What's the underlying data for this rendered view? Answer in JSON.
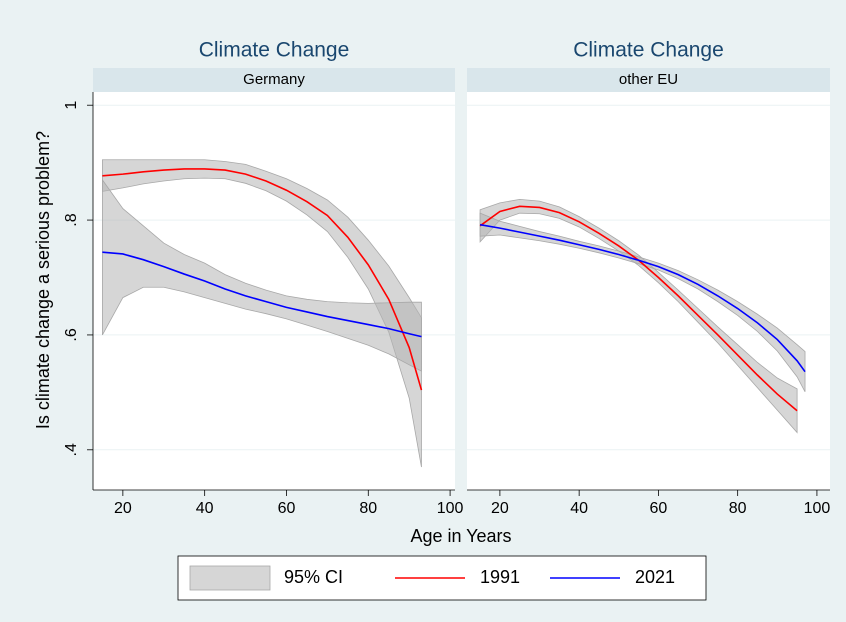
{
  "chart_data": {
    "type": "line",
    "ylabel": "Is climate change a serious problem?",
    "xlabel": "Age in Years",
    "ylim": [
      0.33,
      1.023
    ],
    "yticks": [
      {
        "value": 0.4,
        "label": ".4"
      },
      {
        "value": 0.6,
        "label": ".6"
      },
      {
        "value": 0.8,
        "label": ".8"
      },
      1
    ],
    "grid": true,
    "ci": {
      "label": "95% CI",
      "color": "#b4b4b4"
    },
    "series": [
      {
        "name": "1991",
        "color": "#ff0000"
      },
      {
        "name": "2021",
        "color": "#0000ff"
      }
    ],
    "panels": [
      {
        "title": "Climate Change",
        "subtitle": "Germany",
        "xlim": [
          12.7,
          101.2
        ],
        "xticks": [
          20,
          40,
          60,
          80,
          100
        ],
        "lines": [
          {
            "x": [
              15,
              20,
              25,
              30,
              35,
              40,
              45,
              50,
              55,
              60,
              65,
              70,
              75,
              80,
              85,
              90,
              93
            ],
            "values": [
              0.877,
              0.88,
              0.884,
              0.887,
              0.889,
              0.889,
              0.887,
              0.88,
              0.868,
              0.852,
              0.832,
              0.808,
              0.77,
              0.722,
              0.662,
              0.578,
              0.504
            ],
            "upper": [
              0.905,
              0.905,
              0.905,
              0.905,
              0.905,
              0.905,
              0.902,
              0.897,
              0.885,
              0.872,
              0.855,
              0.835,
              0.805,
              0.765,
              0.72,
              0.665,
              0.63
            ],
            "lower": [
              0.85,
              0.856,
              0.863,
              0.868,
              0.872,
              0.873,
              0.872,
              0.864,
              0.851,
              0.833,
              0.809,
              0.78,
              0.735,
              0.68,
              0.605,
              0.49,
              0.37
            ]
          },
          {
            "x": [
              15,
              20,
              25,
              30,
              35,
              40,
              45,
              50,
              55,
              60,
              65,
              70,
              75,
              80,
              85,
              90,
              93
            ],
            "values": [
              0.744,
              0.741,
              0.731,
              0.719,
              0.706,
              0.694,
              0.68,
              0.668,
              0.658,
              0.648,
              0.64,
              0.632,
              0.625,
              0.618,
              0.611,
              0.602,
              0.597
            ],
            "upper": [
              0.87,
              0.82,
              0.79,
              0.76,
              0.74,
              0.725,
              0.705,
              0.69,
              0.678,
              0.668,
              0.662,
              0.658,
              0.656,
              0.655,
              0.656,
              0.657,
              0.657
            ],
            "lower": [
              0.6,
              0.665,
              0.683,
              0.683,
              0.675,
              0.665,
              0.655,
              0.645,
              0.637,
              0.628,
              0.617,
              0.606,
              0.594,
              0.582,
              0.567,
              0.548,
              0.537
            ]
          }
        ]
      },
      {
        "title": "Climate Change",
        "subtitle": "other EU",
        "xlim": [
          11.7,
          103.3
        ],
        "xticks": [
          20,
          40,
          60,
          80,
          100
        ],
        "lines": [
          {
            "x": [
              15,
              20,
              25,
              30,
              35,
              40,
              45,
              50,
              55,
              60,
              65,
              70,
              75,
              80,
              85,
              90,
              95
            ],
            "values": [
              0.79,
              0.815,
              0.824,
              0.822,
              0.813,
              0.797,
              0.777,
              0.755,
              0.73,
              0.7,
              0.668,
              0.634,
              0.6,
              0.565,
              0.53,
              0.497,
              0.468
            ],
            "upper": [
              0.818,
              0.83,
              0.836,
              0.833,
              0.823,
              0.806,
              0.786,
              0.764,
              0.739,
              0.709,
              0.678,
              0.646,
              0.614,
              0.583,
              0.552,
              0.525,
              0.506
            ],
            "lower": [
              0.762,
              0.8,
              0.812,
              0.811,
              0.803,
              0.788,
              0.768,
              0.746,
              0.721,
              0.691,
              0.658,
              0.622,
              0.586,
              0.547,
              0.508,
              0.469,
              0.43
            ]
          },
          {
            "x": [
              15,
              20,
              25,
              30,
              35,
              40,
              45,
              50,
              55,
              60,
              65,
              70,
              75,
              80,
              85,
              90,
              95,
              97
            ],
            "values": [
              0.792,
              0.786,
              0.779,
              0.772,
              0.765,
              0.757,
              0.749,
              0.74,
              0.73,
              0.719,
              0.705,
              0.688,
              0.668,
              0.646,
              0.621,
              0.592,
              0.555,
              0.536
            ],
            "upper": [
              0.812,
              0.798,
              0.789,
              0.78,
              0.772,
              0.763,
              0.755,
              0.746,
              0.736,
              0.725,
              0.712,
              0.696,
              0.678,
              0.658,
              0.636,
              0.612,
              0.583,
              0.571
            ],
            "lower": [
              0.772,
              0.774,
              0.769,
              0.764,
              0.758,
              0.751,
              0.743,
              0.734,
              0.724,
              0.713,
              0.698,
              0.68,
              0.658,
              0.634,
              0.606,
              0.572,
              0.527,
              0.501
            ]
          }
        ]
      }
    ]
  }
}
